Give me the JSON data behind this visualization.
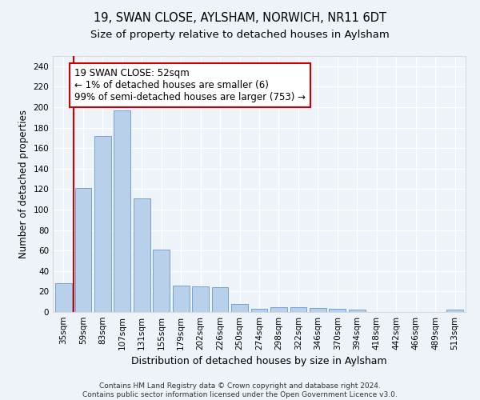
{
  "title1": "19, SWAN CLOSE, AYLSHAM, NORWICH, NR11 6DT",
  "title2": "Size of property relative to detached houses in Aylsham",
  "xlabel": "Distribution of detached houses by size in Aylsham",
  "ylabel": "Number of detached properties",
  "bar_labels": [
    "35sqm",
    "59sqm",
    "83sqm",
    "107sqm",
    "131sqm",
    "155sqm",
    "179sqm",
    "202sqm",
    "226sqm",
    "250sqm",
    "274sqm",
    "298sqm",
    "322sqm",
    "346sqm",
    "370sqm",
    "394sqm",
    "418sqm",
    "442sqm",
    "466sqm",
    "489sqm",
    "513sqm"
  ],
  "bar_values": [
    28,
    121,
    172,
    197,
    111,
    61,
    26,
    25,
    24,
    8,
    3,
    5,
    5,
    4,
    3,
    2,
    0,
    0,
    0,
    0,
    2
  ],
  "bar_color": "#b8d0ea",
  "bar_edge_color": "#6699cc",
  "ylim": [
    0,
    250
  ],
  "yticks": [
    0,
    20,
    40,
    60,
    80,
    100,
    120,
    140,
    160,
    180,
    200,
    220,
    240
  ],
  "marker_color": "#cc0000",
  "annotation_text": "19 SWAN CLOSE: 52sqm\n← 1% of detached houses are smaller (6)\n99% of semi-detached houses are larger (753) →",
  "annotation_box_color": "#ffffff",
  "annotation_box_edge": "#cc0000",
  "footer_text": "Contains HM Land Registry data © Crown copyright and database right 2024.\nContains public sector information licensed under the Open Government Licence v3.0.",
  "bg_color": "#eef2f9",
  "grid_color": "#ffffff",
  "title1_fontsize": 10.5,
  "title2_fontsize": 9.5,
  "xlabel_fontsize": 9,
  "ylabel_fontsize": 8.5,
  "tick_fontsize": 7.5,
  "annotation_fontsize": 8.5,
  "footer_fontsize": 6.5
}
